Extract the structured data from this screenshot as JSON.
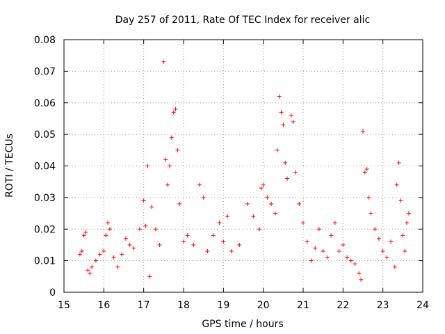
{
  "chart_data": {
    "type": "scatter",
    "title": "Day 257 of 2011, Rate Of TEC Index for receiver alic",
    "xlabel": "GPS time / hours",
    "ylabel": "ROTI / TECUs",
    "xlim": [
      15,
      24
    ],
    "ylim": [
      0,
      0.08
    ],
    "x_ticks": [
      15,
      16,
      17,
      18,
      19,
      20,
      21,
      22,
      23,
      24
    ],
    "y_ticks": [
      0,
      0.01,
      0.02,
      0.03,
      0.04,
      0.05,
      0.06,
      0.07,
      0.08
    ],
    "x_tick_labels": [
      "15",
      "16",
      "17",
      "18",
      "19",
      "20",
      "21",
      "22",
      "23",
      "24"
    ],
    "y_tick_labels": [
      "0",
      "0.01",
      "0.02",
      "0.03",
      "0.04",
      "0.05",
      "0.06",
      "0.07",
      "0.08"
    ],
    "grid": true,
    "marker": "+",
    "color": "#ff0000",
    "series": [
      {
        "name": "ROTI",
        "points": [
          [
            15.4,
            0.012
          ],
          [
            15.45,
            0.013
          ],
          [
            15.5,
            0.018
          ],
          [
            15.55,
            0.019
          ],
          [
            15.6,
            0.007
          ],
          [
            15.65,
            0.006
          ],
          [
            15.7,
            0.008
          ],
          [
            15.8,
            0.01
          ],
          [
            15.9,
            0.012
          ],
          [
            16.0,
            0.013
          ],
          [
            16.05,
            0.018
          ],
          [
            16.1,
            0.022
          ],
          [
            16.15,
            0.02
          ],
          [
            16.25,
            0.011
          ],
          [
            16.35,
            0.008
          ],
          [
            16.45,
            0.012
          ],
          [
            16.55,
            0.017
          ],
          [
            16.65,
            0.015
          ],
          [
            16.75,
            0.014
          ],
          [
            16.9,
            0.02
          ],
          [
            17.0,
            0.029
          ],
          [
            17.05,
            0.021
          ],
          [
            17.1,
            0.04
          ],
          [
            17.15,
            0.005
          ],
          [
            17.2,
            0.027
          ],
          [
            17.3,
            0.02
          ],
          [
            17.4,
            0.015
          ],
          [
            17.5,
            0.073
          ],
          [
            17.55,
            0.042
          ],
          [
            17.6,
            0.034
          ],
          [
            17.65,
            0.04
          ],
          [
            17.7,
            0.049
          ],
          [
            17.75,
            0.057
          ],
          [
            17.8,
            0.058
          ],
          [
            17.85,
            0.045
          ],
          [
            17.9,
            0.028
          ],
          [
            18.0,
            0.016
          ],
          [
            18.1,
            0.018
          ],
          [
            18.25,
            0.015
          ],
          [
            18.4,
            0.034
          ],
          [
            18.5,
            0.03
          ],
          [
            18.6,
            0.013
          ],
          [
            18.75,
            0.018
          ],
          [
            18.9,
            0.022
          ],
          [
            19.0,
            0.016
          ],
          [
            19.1,
            0.024
          ],
          [
            19.2,
            0.013
          ],
          [
            19.4,
            0.015
          ],
          [
            19.6,
            0.028
          ],
          [
            19.75,
            0.024
          ],
          [
            19.9,
            0.02
          ],
          [
            19.95,
            0.033
          ],
          [
            20.0,
            0.034
          ],
          [
            20.1,
            0.03
          ],
          [
            20.2,
            0.028
          ],
          [
            20.3,
            0.025
          ],
          [
            20.35,
            0.045
          ],
          [
            20.4,
            0.062
          ],
          [
            20.45,
            0.057
          ],
          [
            20.5,
            0.053
          ],
          [
            20.55,
            0.041
          ],
          [
            20.6,
            0.036
          ],
          [
            20.7,
            0.056
          ],
          [
            20.75,
            0.054
          ],
          [
            20.8,
            0.038
          ],
          [
            20.9,
            0.028
          ],
          [
            21.0,
            0.022
          ],
          [
            21.1,
            0.016
          ],
          [
            21.2,
            0.01
          ],
          [
            21.3,
            0.014
          ],
          [
            21.4,
            0.02
          ],
          [
            21.5,
            0.013
          ],
          [
            21.6,
            0.011
          ],
          [
            21.7,
            0.018
          ],
          [
            21.8,
            0.022
          ],
          [
            21.9,
            0.013
          ],
          [
            22.0,
            0.015
          ],
          [
            22.1,
            0.011
          ],
          [
            22.2,
            0.01
          ],
          [
            22.3,
            0.009
          ],
          [
            22.4,
            0.006
          ],
          [
            22.45,
            0.004
          ],
          [
            22.5,
            0.051
          ],
          [
            22.55,
            0.038
          ],
          [
            22.6,
            0.039
          ],
          [
            22.65,
            0.03
          ],
          [
            22.7,
            0.025
          ],
          [
            22.8,
            0.02
          ],
          [
            22.9,
            0.017
          ],
          [
            23.0,
            0.013
          ],
          [
            23.1,
            0.011
          ],
          [
            23.2,
            0.016
          ],
          [
            23.3,
            0.008
          ],
          [
            23.35,
            0.034
          ],
          [
            23.4,
            0.041
          ],
          [
            23.45,
            0.029
          ],
          [
            23.5,
            0.018
          ],
          [
            23.55,
            0.013
          ],
          [
            23.6,
            0.022
          ],
          [
            23.65,
            0.025
          ]
        ]
      }
    ]
  }
}
